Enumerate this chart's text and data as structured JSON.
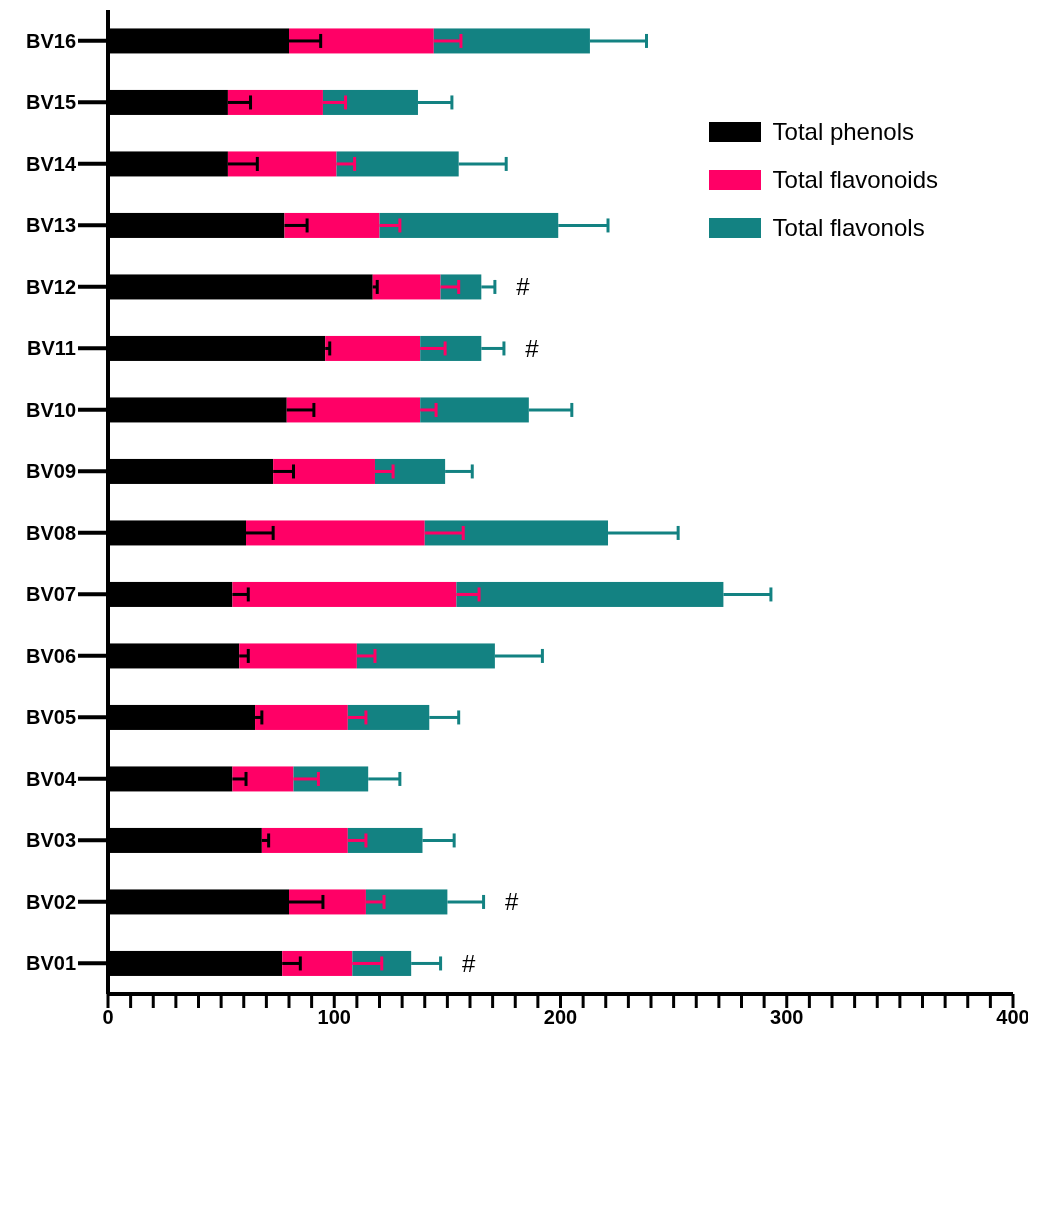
{
  "chart_data": {
    "type": "bar",
    "orientation": "horizontal",
    "stacked": true,
    "categories": [
      "BV16",
      "BV15",
      "BV14",
      "BV13",
      "BV12",
      "BV11",
      "BV10",
      "BV09",
      "BV08",
      "BV07",
      "BV06",
      "BV05",
      "BV04",
      "BV03",
      "BV02",
      "BV01"
    ],
    "series": [
      {
        "name": "Total phenols",
        "color": "#000000",
        "values": [
          80,
          53,
          53,
          78,
          117,
          96,
          79,
          73,
          61,
          55,
          58,
          65,
          55,
          68,
          80,
          77
        ],
        "errors": [
          [
            80,
            94
          ],
          [
            53,
            63
          ],
          [
            53,
            66
          ],
          [
            78,
            88
          ],
          [
            117,
            119
          ],
          [
            96,
            98
          ],
          [
            79,
            91
          ],
          [
            73,
            82
          ],
          [
            61,
            73
          ],
          [
            55,
            62
          ],
          [
            58,
            62
          ],
          [
            65,
            68
          ],
          [
            55,
            61
          ],
          [
            68,
            71
          ],
          [
            80,
            95
          ],
          [
            77,
            85
          ]
        ]
      },
      {
        "name": "Total flavonoids",
        "color": "#ff0066",
        "values": [
          64,
          42,
          48,
          42,
          30,
          42,
          59,
          45,
          79,
          99,
          52,
          41,
          27,
          38,
          34,
          31
        ],
        "errors": [
          [
            144,
            156
          ],
          [
            95,
            105
          ],
          [
            101,
            109
          ],
          [
            120,
            129
          ],
          [
            147,
            155
          ],
          [
            138,
            149
          ],
          [
            138,
            145
          ],
          [
            118,
            126
          ],
          [
            140,
            157
          ],
          [
            154,
            164
          ],
          [
            110,
            118
          ],
          [
            106,
            114
          ],
          [
            82,
            93
          ],
          [
            106,
            114
          ],
          [
            114,
            122
          ],
          [
            108,
            121
          ]
        ]
      },
      {
        "name": "Total flavonols",
        "color": "#138282",
        "values": [
          69,
          42,
          54,
          79,
          18,
          27,
          48,
          31,
          81,
          118,
          61,
          36,
          33,
          33,
          36,
          26
        ],
        "errors": [
          [
            213,
            238
          ],
          [
            137,
            152
          ],
          [
            155,
            176
          ],
          [
            199,
            221
          ],
          [
            165,
            171
          ],
          [
            165,
            175
          ],
          [
            186,
            205
          ],
          [
            149,
            161
          ],
          [
            221,
            252
          ],
          [
            272,
            293
          ],
          [
            171,
            192
          ],
          [
            142,
            155
          ],
          [
            115,
            129
          ],
          [
            139,
            153
          ],
          [
            150,
            166
          ],
          [
            134,
            147
          ]
        ],
        "value_labels": [
          null,
          null,
          null,
          null,
          "#",
          "#",
          null,
          null,
          null,
          null,
          null,
          null,
          null,
          null,
          "#",
          "#"
        ]
      }
    ],
    "xlim": [
      0,
      400
    ],
    "xticks": [
      0,
      {
        "value": 10,
        "label": null
      },
      {
        "value": 20,
        "label": null
      },
      {
        "value": 30,
        "label": null
      },
      {
        "value": 40,
        "label": null
      },
      {
        "value": 50,
        "label": null
      },
      {
        "value": 60,
        "label": null
      },
      {
        "value": 70,
        "label": null
      },
      {
        "value": 80,
        "label": null
      },
      {
        "value": 90,
        "label": null
      },
      100,
      {
        "value": 110,
        "label": null
      },
      {
        "value": 120,
        "label": null
      },
      {
        "value": 130,
        "label": null
      },
      {
        "value": 140,
        "label": null
      },
      {
        "value": 150,
        "label": null
      },
      {
        "value": 160,
        "label": null
      },
      {
        "value": 170,
        "label": null
      },
      {
        "value": 180,
        "label": null
      },
      {
        "value": 190,
        "label": null
      },
      200,
      {
        "value": 210,
        "label": null
      },
      {
        "value": 220,
        "label": null
      },
      {
        "value": 230,
        "label": null
      },
      {
        "value": 240,
        "label": null
      },
      {
        "value": 250,
        "label": null
      },
      {
        "value": 260,
        "label": null
      },
      {
        "value": 270,
        "label": null
      },
      {
        "value": 280,
        "label": null
      },
      {
        "value": 290,
        "label": null
      },
      300,
      {
        "value": 310,
        "label": null
      },
      {
        "value": 320,
        "label": null
      },
      {
        "value": 330,
        "label": null
      },
      {
        "value": 340,
        "label": null
      },
      {
        "value": 350,
        "label": null
      },
      {
        "value": 360,
        "label": null
      },
      {
        "value": 370,
        "label": null
      },
      {
        "value": 380,
        "label": null
      },
      {
        "value": 390,
        "label": null
      },
      400
    ],
    "legend": "top right",
    "grid": false
  }
}
